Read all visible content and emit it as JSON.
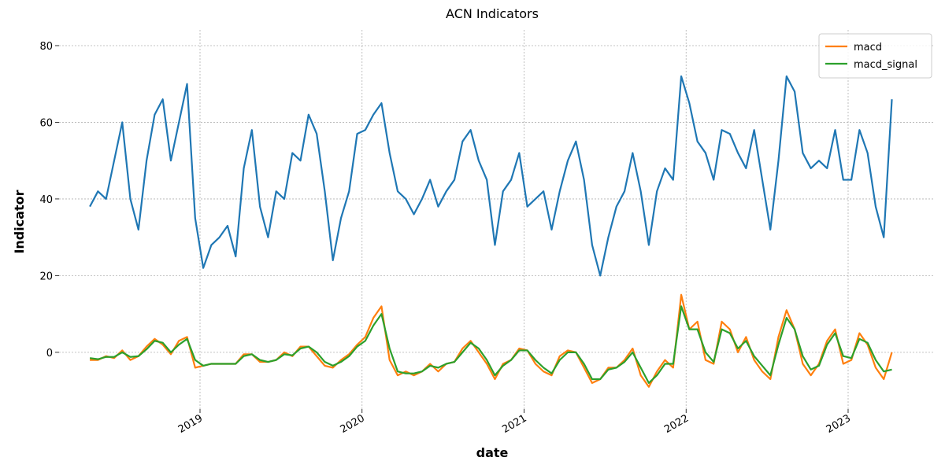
{
  "chart_data": {
    "type": "line",
    "title": "ACN Indicators",
    "x_label": "date",
    "y_label": "Indicator",
    "x": [
      2018.32,
      2018.37,
      2018.42,
      2018.47,
      2018.52,
      2018.57,
      2018.62,
      2018.67,
      2018.72,
      2018.77,
      2018.82,
      2018.87,
      2018.92,
      2018.97,
      2019.02,
      2019.07,
      2019.12,
      2019.17,
      2019.22,
      2019.27,
      2019.32,
      2019.37,
      2019.42,
      2019.47,
      2019.52,
      2019.57,
      2019.62,
      2019.67,
      2019.72,
      2019.77,
      2019.82,
      2019.87,
      2019.92,
      2019.97,
      2020.02,
      2020.07,
      2020.12,
      2020.17,
      2020.22,
      2020.27,
      2020.32,
      2020.37,
      2020.42,
      2020.47,
      2020.52,
      2020.57,
      2020.62,
      2020.67,
      2020.72,
      2020.77,
      2020.82,
      2020.87,
      2020.92,
      2020.97,
      2021.02,
      2021.07,
      2021.12,
      2021.17,
      2021.22,
      2021.27,
      2021.32,
      2021.37,
      2021.42,
      2021.47,
      2021.52,
      2021.57,
      2021.62,
      2021.67,
      2021.72,
      2021.77,
      2021.82,
      2021.87,
      2021.92,
      2021.97,
      2022.02,
      2022.07,
      2022.12,
      2022.17,
      2022.22,
      2022.27,
      2022.32,
      2022.37,
      2022.42,
      2022.47,
      2022.52,
      2022.57,
      2022.62,
      2022.67,
      2022.72,
      2022.77,
      2022.82,
      2022.87,
      2022.92,
      2022.97,
      2023.02,
      2023.07,
      2023.12,
      2023.17,
      2023.22,
      2023.27
    ],
    "series": [
      {
        "color": "#1f77b4",
        "values": [
          38,
          42,
          40,
          50,
          60,
          40,
          32,
          50,
          62,
          66,
          50,
          60,
          70,
          35,
          22,
          28,
          30,
          33,
          25,
          48,
          58,
          38,
          30,
          42,
          40,
          52,
          50,
          62,
          57,
          42,
          24,
          35,
          42,
          57,
          58,
          62,
          65,
          52,
          42,
          40,
          36,
          40,
          45,
          38,
          42,
          45,
          55,
          58,
          50,
          45,
          28,
          42,
          45,
          52,
          38,
          40,
          42,
          32,
          42,
          50,
          55,
          45,
          28,
          20,
          30,
          38,
          42,
          52,
          42,
          28,
          42,
          48,
          45,
          72,
          65,
          55,
          52,
          45,
          58,
          57,
          52,
          48,
          58,
          45,
          32,
          50,
          72,
          68,
          52,
          48,
          50,
          48,
          58,
          45,
          45,
          58,
          52,
          38,
          30,
          66
        ]
      },
      {
        "name": "macd",
        "color": "#ff7f0e",
        "values": [
          -2,
          -2,
          -1,
          -1.5,
          0.5,
          -2,
          -1,
          1.5,
          3.5,
          2,
          -0.5,
          3,
          4,
          -4,
          -3.5,
          -3,
          -3,
          -3,
          -3,
          -0.5,
          -0.5,
          -2.5,
          -2.5,
          -2,
          0,
          -1,
          1.5,
          1.5,
          -1,
          -3.5,
          -4,
          -2,
          -0.5,
          2,
          4,
          9,
          12,
          -2,
          -6,
          -5,
          -6,
          -5,
          -3,
          -5,
          -3,
          -2.5,
          1,
          3,
          0,
          -3,
          -7,
          -3,
          -2,
          1,
          0.5,
          -3,
          -5,
          -6,
          -1,
          0.5,
          0,
          -4,
          -8,
          -7,
          -4,
          -4,
          -2,
          1,
          -6,
          -9,
          -5,
          -2,
          -4,
          15,
          6,
          8,
          -2,
          -3,
          8,
          6,
          0,
          4,
          -2,
          -5,
          -7,
          4,
          11,
          6,
          -3,
          -6,
          -3,
          3,
          6,
          -3,
          -2,
          5,
          2,
          -4,
          -7,
          0
        ]
      },
      {
        "name": "macd_signal",
        "color": "#2ca02c",
        "values": [
          -1.5,
          -1.8,
          -1.2,
          -1.2,
          0,
          -1.2,
          -1,
          0.8,
          3,
          2.5,
          0,
          2,
          3.5,
          -2,
          -3.5,
          -3,
          -3,
          -3,
          -3,
          -1,
          -0.5,
          -2,
          -2.5,
          -2,
          -0.5,
          -0.8,
          1,
          1.5,
          0,
          -2.5,
          -3.5,
          -2.5,
          -1,
          1.5,
          3,
          7,
          10,
          1,
          -5,
          -5.5,
          -5.5,
          -5,
          -3.5,
          -4,
          -3,
          -2.5,
          0,
          2.5,
          1,
          -2,
          -6,
          -3.5,
          -2,
          0.5,
          0.5,
          -2,
          -4,
          -5.5,
          -2,
          0,
          0,
          -3,
          -7,
          -7,
          -4.5,
          -4,
          -2.5,
          0,
          -4,
          -8,
          -6,
          -3,
          -3,
          12,
          6,
          6,
          0,
          -2.5,
          6,
          5,
          1,
          3,
          -1,
          -3.5,
          -6,
          2,
          9,
          6,
          -1,
          -4.5,
          -3.5,
          2,
          5,
          -1,
          -1.5,
          3.5,
          2.5,
          -2,
          -5,
          -4.5
        ]
      }
    ],
    "xlim": [
      2018.13,
      2023.525
    ],
    "xticks": [
      2019,
      2020,
      2021,
      2022,
      2023
    ],
    "ylim": [
      -14.8,
      84.1
    ],
    "yticks": [
      0,
      20,
      40,
      60,
      80
    ],
    "grid": true,
    "legend": "upper right"
  }
}
